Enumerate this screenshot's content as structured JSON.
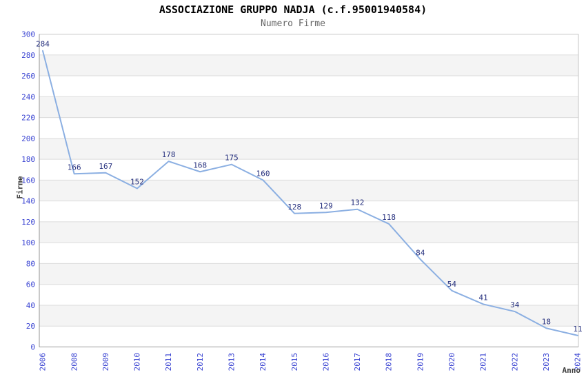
{
  "chart_data": {
    "type": "line",
    "title": "ASSOCIAZIONE GRUPPO NADJA (c.f.95001940584)",
    "subtitle": "Numero Firme",
    "xlabel": "Anno",
    "ylabel": "Firme",
    "categories": [
      "2006",
      "2008",
      "2009",
      "2010",
      "2011",
      "2012",
      "2013",
      "2014",
      "2015",
      "2016",
      "2017",
      "2018",
      "2019",
      "2020",
      "2021",
      "2022",
      "2023",
      "2024"
    ],
    "values": [
      284,
      166,
      167,
      152,
      178,
      168,
      175,
      160,
      128,
      129,
      132,
      118,
      84,
      54,
      41,
      34,
      18,
      11
    ],
    "ylim": [
      0,
      300
    ],
    "ytick_step": 20,
    "grid": true,
    "legend": "none",
    "band_colors": [
      "#ffffff",
      "#f4f4f4"
    ],
    "colors": {
      "line": "#8bafe2",
      "tick_label": "#3a44d2",
      "data_label": "#26307e",
      "gridline": "#dcdcdc",
      "border_light": "#c6c6c6",
      "axis_dark": "#969696",
      "axis_title": "#3c3c3c",
      "title": "#000000",
      "subtitle": "#636363"
    }
  }
}
